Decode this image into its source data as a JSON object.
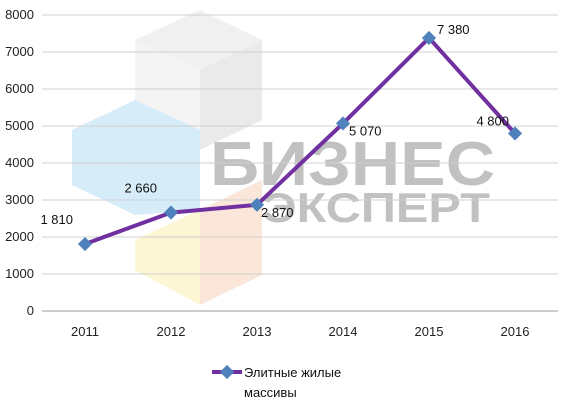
{
  "chart_data": {
    "type": "line",
    "title": "",
    "xlabel": "",
    "ylabel": "",
    "categories": [
      "2011",
      "2012",
      "2013",
      "2014",
      "2015",
      "2016"
    ],
    "series": [
      {
        "name": "Элитные жилые массивы",
        "values": [
          1810,
          2660,
          2870,
          5070,
          7380,
          4800
        ],
        "data_labels": [
          "1 810",
          "2 660",
          "2 870",
          "5 070",
          "7 380",
          "4 800"
        ],
        "line_color": "#7030a0",
        "marker_color": "#4f81bd"
      }
    ],
    "ylim": [
      0,
      8000
    ],
    "yticks": [
      "0",
      "1000",
      "2000",
      "3000",
      "4000",
      "5000",
      "6000",
      "7000",
      "8000"
    ],
    "grid": true,
    "legend_position": "bottom-left"
  },
  "legend": {
    "line1": "Элитные жилые",
    "line2": "массивы"
  },
  "watermark": {
    "line1": "БИЗНЕС",
    "line2": "ЭКСПЕРТ",
    "cube_colors": [
      "#c9e6f7",
      "#e6e6e6",
      "#fbf3c6",
      "#f9dfcd"
    ]
  }
}
